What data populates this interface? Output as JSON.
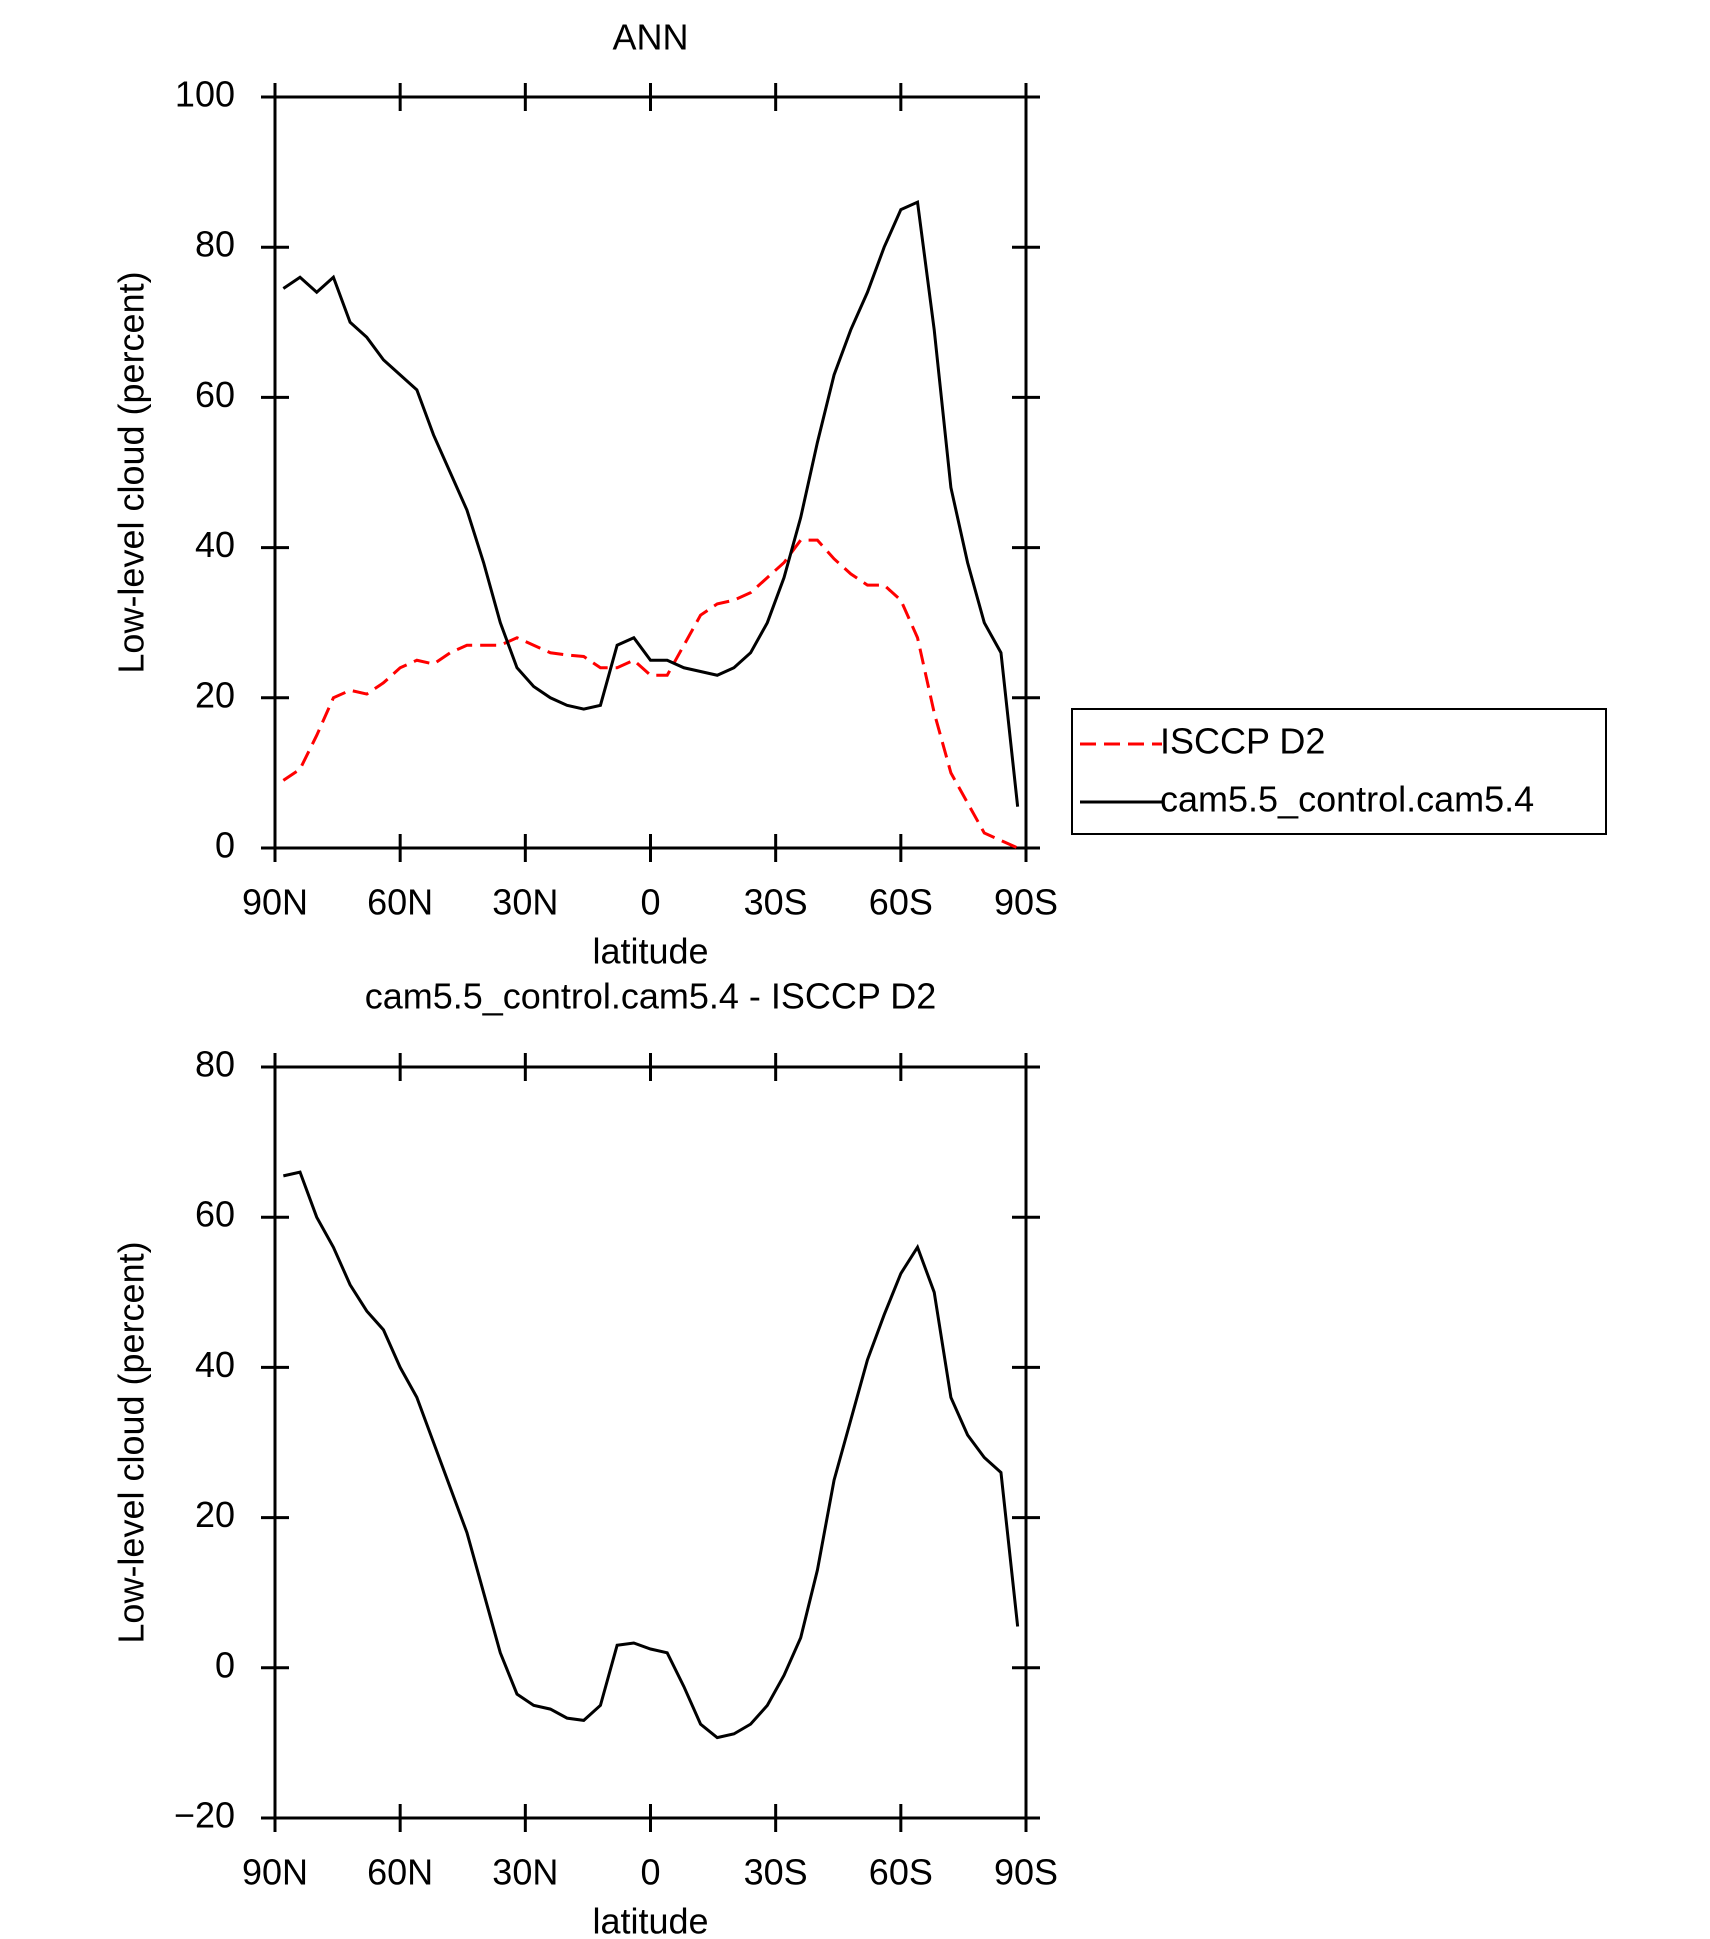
{
  "chart_data": [
    {
      "type": "line",
      "title": "ANN",
      "x_label": "latitude",
      "y_label": "Low-level cloud (percent)",
      "x": [
        88,
        84,
        80,
        76,
        72,
        68,
        64,
        60,
        56,
        52,
        48,
        44,
        40,
        36,
        32,
        28,
        24,
        20,
        16,
        12,
        8,
        4,
        0,
        -4,
        -8,
        -12,
        -16,
        -20,
        -24,
        -28,
        -32,
        -36,
        -40,
        -44,
        -48,
        -52,
        -56,
        -60,
        -64,
        -68,
        -72,
        -76,
        -80,
        -84,
        -88
      ],
      "xlim": [
        90,
        -90
      ],
      "xticks": [
        {
          "value": 90,
          "label": "90N"
        },
        {
          "value": 60,
          "label": "60N"
        },
        {
          "value": 30,
          "label": "30N"
        },
        0,
        {
          "value": -30,
          "label": "30S"
        },
        {
          "value": -60,
          "label": "60S"
        },
        {
          "value": -90,
          "label": "90S"
        }
      ],
      "ylim": [
        0,
        100
      ],
      "yticks": [
        0,
        20,
        40,
        60,
        80,
        100
      ],
      "legend": "right",
      "series": [
        {
          "name": "ISCCP D2",
          "color": "#ff0000",
          "line_style": "dashed",
          "values": [
            9,
            10.5,
            15,
            20,
            21,
            20.5,
            22,
            24,
            25,
            24.5,
            26,
            27,
            27,
            27,
            28,
            27,
            26,
            25.7,
            25.5,
            24,
            24,
            25,
            23,
            23,
            27,
            31,
            32.5,
            33,
            34,
            36,
            38,
            41,
            41,
            38.5,
            36.5,
            35,
            35,
            33,
            28,
            18,
            10,
            6,
            2,
            1,
            0
          ]
        },
        {
          "name": "cam5.5_control.cam5.4",
          "color": "#000000",
          "line_style": "solid",
          "values": [
            74.5,
            76,
            74,
            76,
            70,
            68,
            65,
            63,
            61,
            55,
            50,
            45,
            38,
            30,
            24,
            21.5,
            20,
            19,
            18.5,
            19,
            27,
            28,
            25,
            25,
            24,
            23.5,
            23,
            24,
            26,
            30,
            36,
            44,
            54,
            63,
            69,
            74,
            80,
            85,
            86,
            69,
            48,
            38,
            30,
            26,
            5.5
          ]
        }
      ]
    },
    {
      "type": "line",
      "title": "cam5.5_control.cam5.4 - ISCCP D2",
      "x_label": "latitude",
      "y_label": "Low-level cloud (percent)",
      "x": [
        88,
        84,
        80,
        76,
        72,
        68,
        64,
        60,
        56,
        52,
        48,
        44,
        40,
        36,
        32,
        28,
        24,
        20,
        16,
        12,
        8,
        4,
        0,
        -4,
        -8,
        -12,
        -16,
        -20,
        -24,
        -28,
        -32,
        -36,
        -40,
        -44,
        -48,
        -52,
        -56,
        -60,
        -64,
        -68,
        -72,
        -76,
        -80,
        -84,
        -88
      ],
      "xlim": [
        90,
        -90
      ],
      "xticks": [
        {
          "value": 90,
          "label": "90N"
        },
        {
          "value": 60,
          "label": "60N"
        },
        {
          "value": 30,
          "label": "30N"
        },
        0,
        {
          "value": -30,
          "label": "30S"
        },
        {
          "value": -60,
          "label": "60S"
        },
        {
          "value": -90,
          "label": "90S"
        }
      ],
      "ylim": [
        -20,
        80
      ],
      "yticks": [
        {
          "value": -20,
          "label": "−20"
        },
        0,
        20,
        40,
        60,
        80
      ],
      "series": [
        {
          "color": "#000000",
          "line_style": "solid",
          "values": [
            65.5,
            66,
            60,
            56,
            51,
            47.5,
            45,
            40,
            36,
            30,
            24,
            18,
            10,
            2,
            -3.5,
            -5,
            -5.5,
            -6.7,
            -7,
            -5,
            3,
            3.3,
            2.5,
            2,
            -2.5,
            -7.5,
            -9.3,
            -8.8,
            -7.5,
            -5,
            -1,
            4,
            13,
            25,
            33,
            41,
            47,
            52.5,
            56,
            50,
            36,
            31,
            28,
            26,
            5.5
          ]
        }
      ]
    }
  ]
}
